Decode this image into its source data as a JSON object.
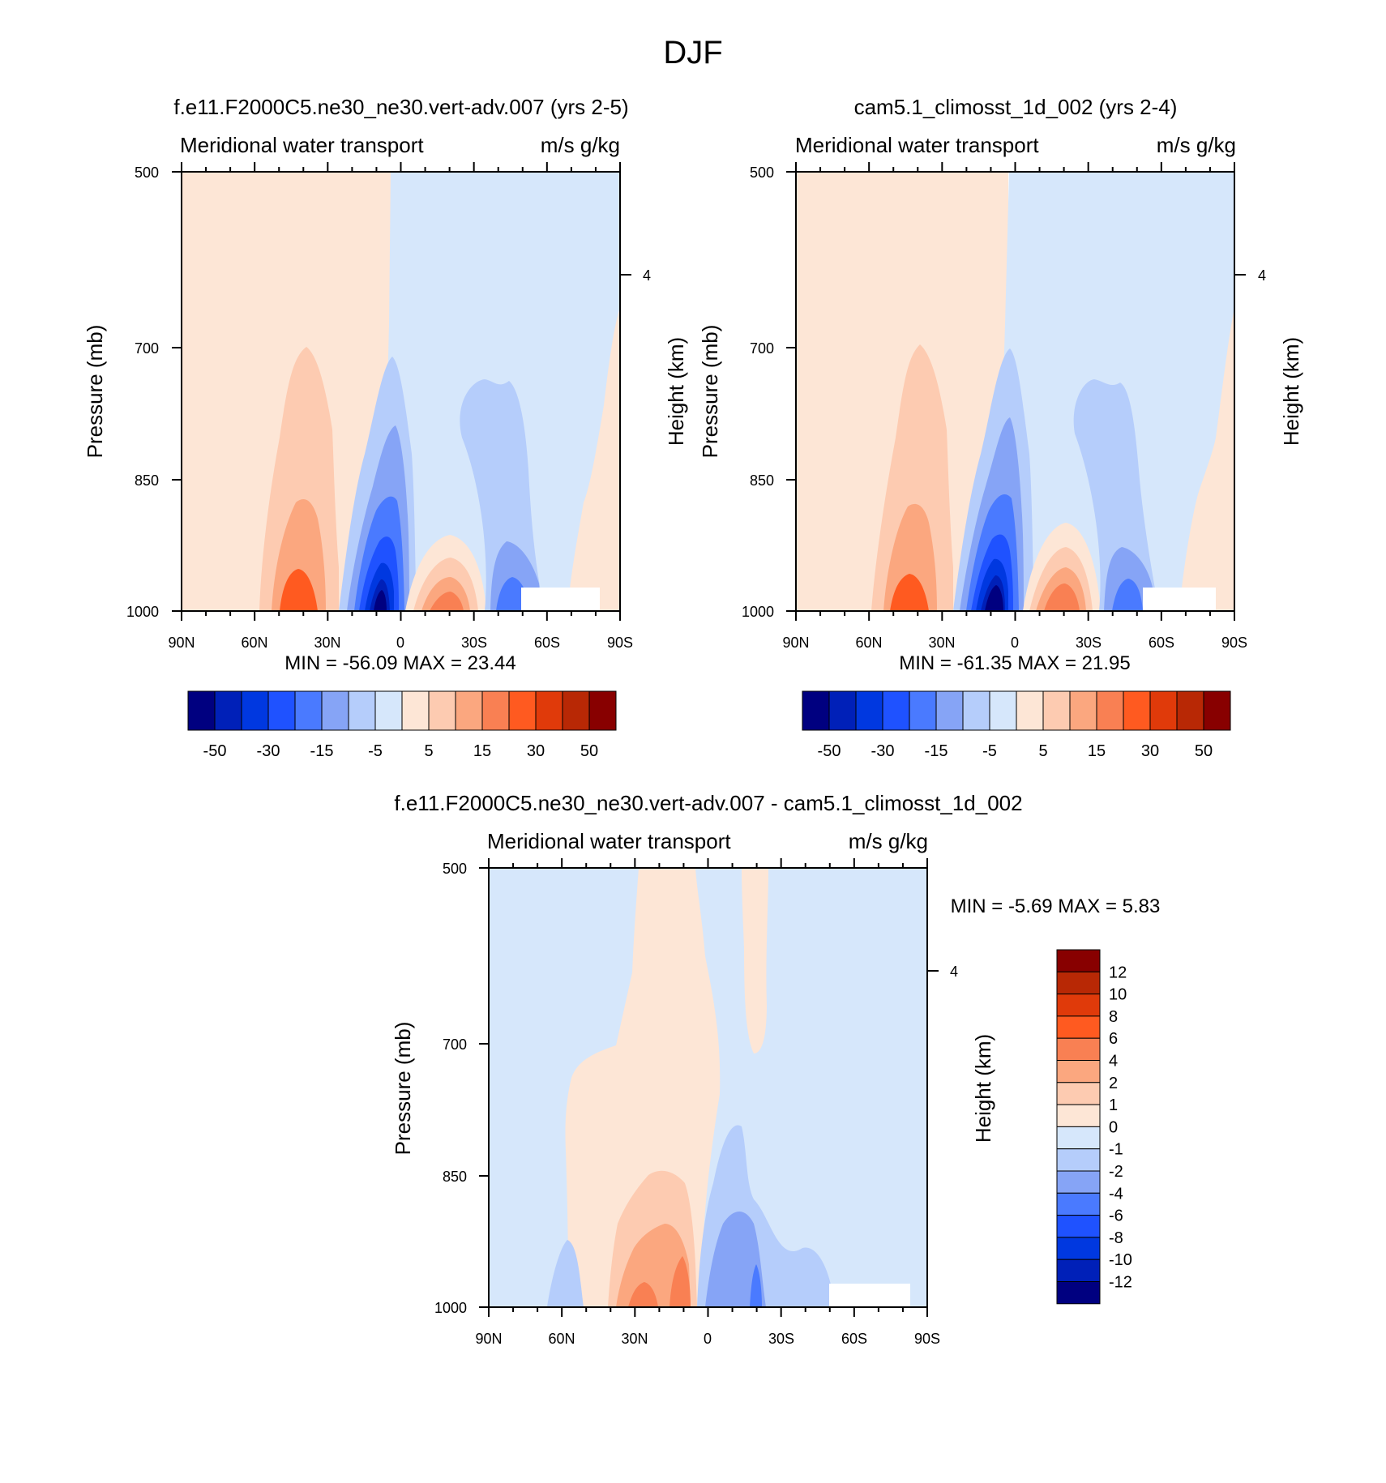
{
  "page": {
    "title": "DJF"
  },
  "palette": {
    "blues": [
      "#000080",
      "#0020b8",
      "#0038e0",
      "#1f52ff",
      "#4a7aff",
      "#86a4f6",
      "#b5cdfb",
      "#d6e7fb"
    ],
    "reds": [
      "#fde6d6",
      "#fdcbb1",
      "#fba77f",
      "#f98053",
      "#ff5a20",
      "#e03a0a",
      "#b82805",
      "#880000"
    ],
    "background_blue": "#d6e7fb",
    "background_red": "#fde6d6"
  },
  "chart_data": [
    {
      "type": "heatmap",
      "subtitle": "f.e11.F2000C5.ne30_ne30.vert-adv.007 (yrs 2-5)",
      "left_label": "Meridional water transport",
      "right_label": "m/s g/kg",
      "ylabel": "Pressure (mb)",
      "ylabel_right": "Height (km)",
      "x_ticks": [
        "90N",
        "60N",
        "30N",
        "0",
        "30S",
        "60S",
        "90S"
      ],
      "y_ticks": [
        "500",
        "700",
        "850",
        "1000"
      ],
      "y_right_ticks": [
        "4"
      ],
      "min_max": "MIN = -56.09  MAX =  23.44",
      "colorbar_labels": [
        "-50",
        "-30",
        "-15",
        "-5",
        "5",
        "15",
        "30",
        "50"
      ],
      "features": [
        {
          "lat": 38,
          "pressure_top": 700,
          "peak": 18
        },
        {
          "lat": 10,
          "pressure_top": 760,
          "peak": -56
        },
        {
          "lat": -20,
          "pressure_top": 920,
          "peak": 15
        },
        {
          "lat": -50,
          "pressure_top": 720,
          "peak": -8
        }
      ]
    },
    {
      "type": "heatmap",
      "subtitle": "cam5.1_climosst_1d_002 (yrs 2-4)",
      "left_label": "Meridional water transport",
      "right_label": "m/s g/kg",
      "ylabel": "Pressure (mb)",
      "ylabel_right": "Height (km)",
      "x_ticks": [
        "90N",
        "60N",
        "30N",
        "0",
        "30S",
        "60S",
        "90S"
      ],
      "y_ticks": [
        "500",
        "700",
        "850",
        "1000"
      ],
      "y_right_ticks": [
        "4"
      ],
      "min_max": "MIN = -61.35  MAX =  21.95",
      "colorbar_labels": [
        "-50",
        "-30",
        "-15",
        "-5",
        "5",
        "15",
        "30",
        "50"
      ],
      "features": [
        {
          "lat": 38,
          "pressure_top": 700,
          "peak": 18
        },
        {
          "lat": 10,
          "pressure_top": 770,
          "peak": -61
        },
        {
          "lat": -20,
          "pressure_top": 905,
          "peak": 16
        },
        {
          "lat": -45,
          "pressure_top": 730,
          "peak": -8
        }
      ]
    },
    {
      "type": "heatmap",
      "subtitle": "f.e11.F2000C5.ne30_ne30.vert-adv.007 - cam5.1_climosst_1d_002",
      "left_label": "Meridional water transport",
      "right_label": "m/s g/kg",
      "ylabel": "Pressure (mb)",
      "ylabel_right": "Height (km)",
      "x_ticks": [
        "90N",
        "60N",
        "30N",
        "0",
        "30S",
        "60S",
        "90S"
      ],
      "y_ticks": [
        "500",
        "700",
        "850",
        "1000"
      ],
      "y_right_ticks": [
        "4"
      ],
      "min_max": "MIN =  -5.69  MAX =   5.83",
      "colorbar_labels": [
        "12",
        "10",
        "8",
        "6",
        "4",
        "2",
        "1",
        "0",
        "-1",
        "-2",
        "-4",
        "-6",
        "-8",
        "-10",
        "-12"
      ]
    }
  ]
}
